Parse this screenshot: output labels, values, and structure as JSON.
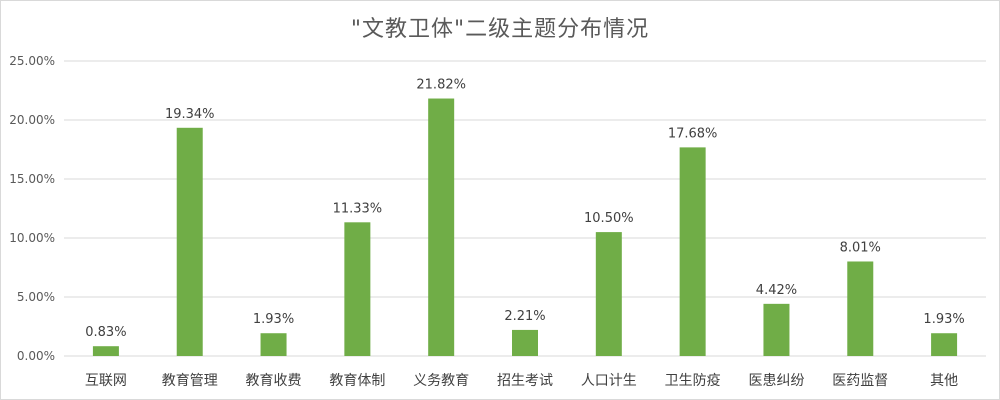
{
  "chart_data": {
    "type": "bar",
    "title": "\"文教卫体\"二级主题分布情况",
    "xlabel": "",
    "ylabel": "",
    "categories": [
      "互联网",
      "教育管理",
      "教育收费",
      "教育体制",
      "义务教育",
      "招生考试",
      "人口计生",
      "卫生防疫",
      "医患纠纷",
      "医药监督",
      "其他"
    ],
    "values": [
      0.83,
      19.34,
      1.93,
      11.33,
      21.82,
      2.21,
      10.5,
      17.68,
      4.42,
      8.01,
      1.93
    ],
    "data_labels": [
      "0.83%",
      "19.34%",
      "1.93%",
      "11.33%",
      "21.82%",
      "2.21%",
      "10.50%",
      "17.68%",
      "4.42%",
      "8.01%",
      "1.93%"
    ],
    "ylim": [
      0,
      25
    ],
    "y_ticks": [
      0,
      5,
      10,
      15,
      20,
      25
    ],
    "y_tick_labels": [
      "0.00%",
      "5.00%",
      "10.00%",
      "15.00%",
      "20.00%",
      "25.00%"
    ],
    "grid": true,
    "legend": "none",
    "bar_color": "#70ad47"
  }
}
